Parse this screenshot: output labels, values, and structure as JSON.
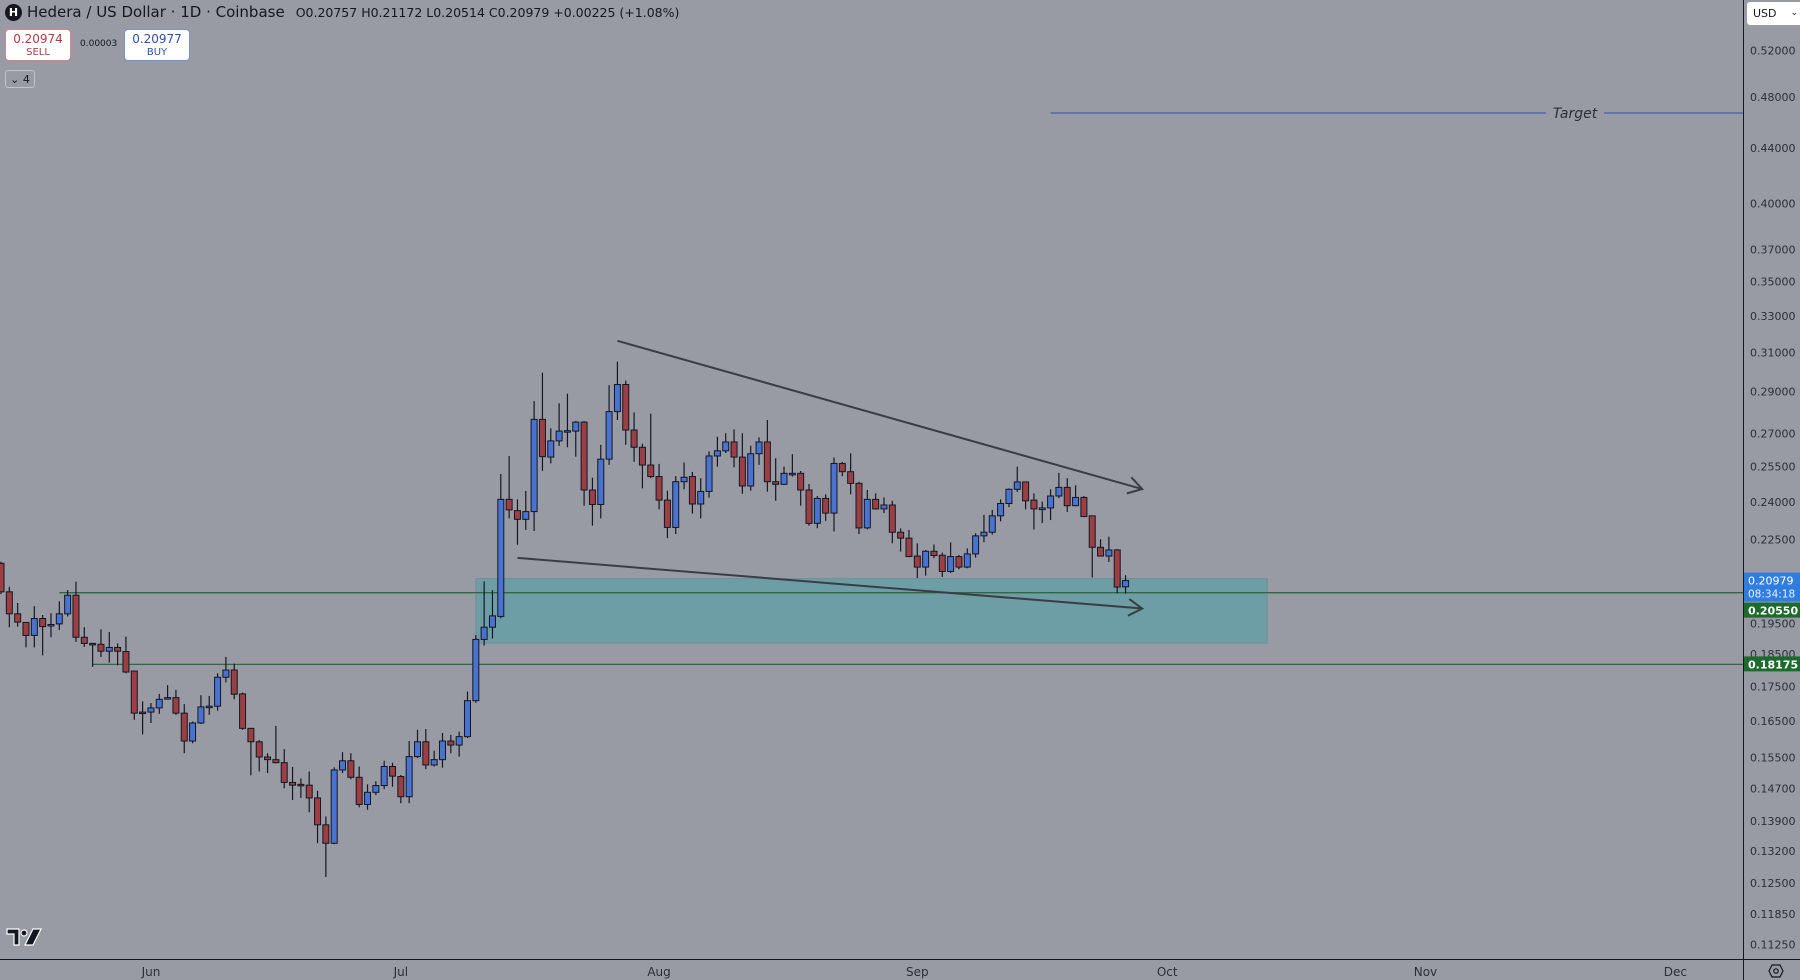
{
  "header": {
    "symbol_title": "Hedera / US Dollar · 1D · Coinbase",
    "symbol_logo_letter": "H",
    "ohlc": "O0.20757 H0.21172 L0.20514 C0.20979 +0.00225 (+1.08%)",
    "sell_price": "0.20974",
    "sell_label": "SELL",
    "spread": "0.00003",
    "buy_price": "0.20977",
    "buy_label": "BUY",
    "indicators_toggle": "4"
  },
  "currency_selector": "USD",
  "colors": {
    "background": "#999ba4",
    "up_candle": "#4a72d0",
    "down_candle": "#9c3f44",
    "wick": "#131722",
    "target_line": "#3f5fb8",
    "support_line": "#2e6a3a",
    "zone_fill": "#5f9ea6",
    "trend_line": "#3a3d46",
    "last_price_label": "#2f7de1",
    "support_label": "#1d6b2c"
  },
  "chart_data": {
    "type": "candlestick",
    "title": "Hedera / US Dollar · 1D · Coinbase",
    "y_scale": "log",
    "ylim": [
      0.1105,
      0.53
    ],
    "grid": false,
    "y_ticks": [
      "0.52000",
      "0.48000",
      "0.44000",
      "0.40000",
      "0.37000",
      "0.35000",
      "0.33000",
      "0.31000",
      "0.29000",
      "0.27000",
      "0.25500",
      "0.24000",
      "0.22500",
      "0.19500",
      "0.18500",
      "0.17500",
      "0.16500",
      "0.15500",
      "0.14700",
      "0.13900",
      "0.13200",
      "0.12500",
      "0.11850",
      "0.11250"
    ],
    "x_ticks": [
      {
        "label": "Jun",
        "date": "06-01"
      },
      {
        "label": "Jul",
        "date": "07-01"
      },
      {
        "label": "Aug",
        "date": "08-01"
      },
      {
        "label": "Sep",
        "date": "09-01"
      },
      {
        "label": "Oct",
        "date": "10-01"
      },
      {
        "label": "Nov",
        "date": "11-01"
      },
      {
        "label": "Dec",
        "date": "12-01"
      }
    ],
    "candle_fields": [
      "date",
      "open",
      "high",
      "low",
      "close"
    ],
    "candles": [
      [
        "05-14",
        0.2161,
        0.2167,
        0.205,
        0.2058
      ],
      [
        "05-15",
        0.2058,
        0.2076,
        0.1937,
        0.1982
      ],
      [
        "05-16",
        0.1982,
        0.2019,
        0.1939,
        0.1954
      ],
      [
        "05-17",
        0.1953,
        0.1953,
        0.1871,
        0.191
      ],
      [
        "05-18",
        0.191,
        0.2008,
        0.1871,
        0.1966
      ],
      [
        "05-19",
        0.1966,
        0.1978,
        0.1846,
        0.1939
      ],
      [
        "05-20",
        0.1942,
        0.1984,
        0.1904,
        0.1946
      ],
      [
        "05-21",
        0.1948,
        0.2025,
        0.1928,
        0.1982
      ],
      [
        "05-22",
        0.1982,
        0.2064,
        0.1973,
        0.2046
      ],
      [
        "05-23",
        0.2046,
        0.2094,
        0.1889,
        0.1904
      ],
      [
        "05-24",
        0.1904,
        0.1937,
        0.1873,
        0.1884
      ],
      [
        "05-25",
        0.1884,
        0.1886,
        0.181,
        0.1882
      ],
      [
        "05-26",
        0.1881,
        0.193,
        0.1841,
        0.1859
      ],
      [
        "05-27",
        0.1859,
        0.1921,
        0.1823,
        0.1871
      ],
      [
        "05-28",
        0.1871,
        0.1884,
        0.1815,
        0.1859
      ],
      [
        "05-29",
        0.1858,
        0.1906,
        0.179,
        0.1794
      ],
      [
        "05-30",
        0.1797,
        0.1797,
        0.1653,
        0.1672
      ],
      [
        "05-31",
        0.1675,
        0.1706,
        0.1612,
        0.1672
      ],
      [
        "06-01",
        0.1675,
        0.1701,
        0.1644,
        0.1687
      ],
      [
        "06-02",
        0.1687,
        0.1728,
        0.167,
        0.1712
      ],
      [
        "06-03",
        0.1716,
        0.1754,
        0.1713,
        0.1717
      ],
      [
        "06-04",
        0.1717,
        0.174,
        0.1667,
        0.1672
      ],
      [
        "06-05",
        0.1672,
        0.1698,
        0.1561,
        0.1594
      ],
      [
        "06-06",
        0.1594,
        0.1648,
        0.1588,
        0.1644
      ],
      [
        "06-07",
        0.1644,
        0.1724,
        0.1641,
        0.169
      ],
      [
        "06-08",
        0.1688,
        0.1722,
        0.1667,
        0.1692
      ],
      [
        "06-09",
        0.1692,
        0.179,
        0.1679,
        0.1778
      ],
      [
        "06-10",
        0.1778,
        0.1841,
        0.1762,
        0.18
      ],
      [
        "06-11",
        0.18,
        0.182,
        0.1712,
        0.1727
      ],
      [
        "06-12",
        0.1728,
        0.1732,
        0.1625,
        0.1629
      ],
      [
        "06-13",
        0.1629,
        0.1629,
        0.1503,
        0.1592
      ],
      [
        "06-14",
        0.1592,
        0.1597,
        0.1513,
        0.1551
      ],
      [
        "06-15",
        0.1551,
        0.1561,
        0.1509,
        0.1544
      ],
      [
        "06-16",
        0.1544,
        0.1636,
        0.1534,
        0.1536
      ],
      [
        "06-17",
        0.1536,
        0.1572,
        0.147,
        0.1485
      ],
      [
        "06-18",
        0.1485,
        0.1525,
        0.1441,
        0.1478
      ],
      [
        "06-19",
        0.148,
        0.1495,
        0.1446,
        0.1479
      ],
      [
        "06-20",
        0.1478,
        0.1513,
        0.1411,
        0.1446
      ],
      [
        "06-21",
        0.1446,
        0.1464,
        0.1338,
        0.1381
      ],
      [
        "06-22",
        0.1381,
        0.1401,
        0.1263,
        0.1338
      ],
      [
        "06-23",
        0.1338,
        0.1524,
        0.1336,
        0.1517
      ],
      [
        "06-24",
        0.1517,
        0.1564,
        0.1509,
        0.1541
      ],
      [
        "06-25",
        0.1541,
        0.1561,
        0.1493,
        0.1498
      ],
      [
        "06-26",
        0.1498,
        0.1526,
        0.1423,
        0.143
      ],
      [
        "06-27",
        0.143,
        0.148,
        0.1417,
        0.146
      ],
      [
        "06-28",
        0.146,
        0.1488,
        0.1453,
        0.1477
      ],
      [
        "06-29",
        0.1477,
        0.1541,
        0.1468,
        0.1526
      ],
      [
        "06-30",
        0.1526,
        0.1536,
        0.1474,
        0.1501
      ],
      [
        "07-01",
        0.15,
        0.1504,
        0.1433,
        0.1449
      ],
      [
        "07-02",
        0.1449,
        0.1594,
        0.1433,
        0.1552
      ],
      [
        "07-03",
        0.1552,
        0.1625,
        0.1548,
        0.1592
      ],
      [
        "07-04",
        0.1592,
        0.1627,
        0.1519,
        0.153
      ],
      [
        "07-05",
        0.153,
        0.1568,
        0.1526,
        0.1544
      ],
      [
        "07-06",
        0.1544,
        0.1616,
        0.1523,
        0.1594
      ],
      [
        "07-07",
        0.1594,
        0.1611,
        0.1561,
        0.1583
      ],
      [
        "07-08",
        0.1583,
        0.162,
        0.1552,
        0.1606
      ],
      [
        "07-09",
        0.1606,
        0.1735,
        0.1602,
        0.1708
      ],
      [
        "07-10",
        0.1708,
        0.1911,
        0.1702,
        0.1897
      ],
      [
        "07-11",
        0.1897,
        0.2095,
        0.1877,
        0.1937
      ],
      [
        "07-12",
        0.1937,
        0.2064,
        0.19,
        0.1975
      ],
      [
        "07-13",
        0.1973,
        0.2518,
        0.1967,
        0.2411
      ],
      [
        "07-14",
        0.2411,
        0.2597,
        0.2334,
        0.2368
      ],
      [
        "07-15",
        0.2365,
        0.2411,
        0.2231,
        0.233
      ],
      [
        "07-16",
        0.233,
        0.2446,
        0.2288,
        0.2361
      ],
      [
        "07-17",
        0.2361,
        0.2853,
        0.2284,
        0.2765
      ],
      [
        "07-18",
        0.2765,
        0.2995,
        0.2532,
        0.2594
      ],
      [
        "07-19",
        0.2592,
        0.2723,
        0.2564,
        0.2665
      ],
      [
        "07-20",
        0.2665,
        0.2842,
        0.2642,
        0.271
      ],
      [
        "07-21",
        0.271,
        0.2889,
        0.2636,
        0.2712
      ],
      [
        "07-22",
        0.271,
        0.2757,
        0.2594,
        0.2752
      ],
      [
        "07-23",
        0.2752,
        0.2757,
        0.2385,
        0.245
      ],
      [
        "07-24",
        0.245,
        0.2502,
        0.2305,
        0.239
      ],
      [
        "07-25",
        0.239,
        0.2647,
        0.2334,
        0.2583
      ],
      [
        "07-26",
        0.2583,
        0.2932,
        0.2558,
        0.2802
      ],
      [
        "07-27",
        0.2802,
        0.3052,
        0.2762,
        0.2935
      ],
      [
        "07-28",
        0.2935,
        0.2955,
        0.2647,
        0.2715
      ],
      [
        "07-29",
        0.2715,
        0.2798,
        0.2571,
        0.2636
      ],
      [
        "07-30",
        0.2636,
        0.2652,
        0.2457,
        0.2557
      ],
      [
        "07-31",
        0.2557,
        0.2792,
        0.25,
        0.2507
      ],
      [
        "08-01",
        0.2507,
        0.2562,
        0.237,
        0.2408
      ],
      [
        "08-02",
        0.2408,
        0.2447,
        0.2256,
        0.2298
      ],
      [
        "08-03",
        0.2298,
        0.2509,
        0.2272,
        0.2485
      ],
      [
        "08-04",
        0.2485,
        0.2568,
        0.2453,
        0.2504
      ],
      [
        "08-05",
        0.2507,
        0.2527,
        0.2353,
        0.2392
      ],
      [
        "08-06",
        0.2392,
        0.25,
        0.2334,
        0.2444
      ],
      [
        "08-07",
        0.2444,
        0.2617,
        0.2418,
        0.2597
      ],
      [
        "08-08",
        0.2597,
        0.2684,
        0.255,
        0.262
      ],
      [
        "08-09",
        0.262,
        0.27,
        0.261,
        0.266
      ],
      [
        "08-10",
        0.266,
        0.2718,
        0.2547,
        0.2592
      ],
      [
        "08-11",
        0.2592,
        0.27,
        0.2434,
        0.2467
      ],
      [
        "08-12",
        0.2467,
        0.2643,
        0.2447,
        0.2607
      ],
      [
        "08-13",
        0.2607,
        0.2681,
        0.2558,
        0.266
      ],
      [
        "08-14",
        0.266,
        0.2762,
        0.2443,
        0.2485
      ],
      [
        "08-15",
        0.2485,
        0.2587,
        0.2405,
        0.2474
      ],
      [
        "08-16",
        0.2474,
        0.255,
        0.2471,
        0.2521
      ],
      [
        "08-17",
        0.2519,
        0.2605,
        0.2507,
        0.2521
      ],
      [
        "08-18",
        0.2521,
        0.2531,
        0.2385,
        0.245
      ],
      [
        "08-19",
        0.245,
        0.2475,
        0.2305,
        0.2314
      ],
      [
        "08-20",
        0.2314,
        0.2425,
        0.2295,
        0.2415
      ],
      [
        "08-21",
        0.2415,
        0.2432,
        0.2324,
        0.2355
      ],
      [
        "08-22",
        0.2355,
        0.259,
        0.2282,
        0.2564
      ],
      [
        "08-23",
        0.2564,
        0.2571,
        0.2509,
        0.2528
      ],
      [
        "08-24",
        0.2528,
        0.2609,
        0.2432,
        0.2478
      ],
      [
        "08-25",
        0.2478,
        0.2485,
        0.2272,
        0.2296
      ],
      [
        "08-26",
        0.2296,
        0.245,
        0.229,
        0.2411
      ],
      [
        "08-27",
        0.2411,
        0.2436,
        0.2369,
        0.2372
      ],
      [
        "08-28",
        0.2372,
        0.2419,
        0.2355,
        0.2388
      ],
      [
        "08-29",
        0.2388,
        0.2405,
        0.2236,
        0.2279
      ],
      [
        "08-30",
        0.2279,
        0.2294,
        0.2205,
        0.2256
      ],
      [
        "08-31",
        0.2256,
        0.2288,
        0.2184,
        0.2186
      ],
      [
        "09-01",
        0.2188,
        0.2236,
        0.2107,
        0.2147
      ],
      [
        "09-02",
        0.2147,
        0.2211,
        0.2116,
        0.2206
      ],
      [
        "09-03",
        0.2206,
        0.2232,
        0.218,
        0.219
      ],
      [
        "09-04",
        0.2191,
        0.2201,
        0.2111,
        0.2131
      ],
      [
        "09-05",
        0.2131,
        0.224,
        0.2126,
        0.2186
      ],
      [
        "09-06",
        0.2186,
        0.2192,
        0.2139,
        0.2147
      ],
      [
        "09-07",
        0.2147,
        0.2217,
        0.2143,
        0.2196
      ],
      [
        "09-08",
        0.2196,
        0.2275,
        0.2182,
        0.2265
      ],
      [
        "09-09",
        0.2265,
        0.2348,
        0.224,
        0.2279
      ],
      [
        "09-10",
        0.2279,
        0.2368,
        0.227,
        0.2344
      ],
      [
        "09-11",
        0.2344,
        0.2411,
        0.2322,
        0.2394
      ],
      [
        "09-12",
        0.2394,
        0.2457,
        0.2379,
        0.2453
      ],
      [
        "09-13",
        0.2453,
        0.255,
        0.2442,
        0.2484
      ],
      [
        "09-14",
        0.2484,
        0.2486,
        0.237,
        0.2405
      ],
      [
        "09-15",
        0.2408,
        0.2436,
        0.229,
        0.2372
      ],
      [
        "09-16",
        0.2369,
        0.2402,
        0.2315,
        0.2376
      ],
      [
        "09-17",
        0.2376,
        0.2453,
        0.2327,
        0.2425
      ],
      [
        "09-18",
        0.2425,
        0.2523,
        0.2416,
        0.2461
      ],
      [
        "09-19",
        0.2461,
        0.25,
        0.236,
        0.2385
      ],
      [
        "09-20",
        0.2385,
        0.247,
        0.2383,
        0.2419
      ],
      [
        "09-21",
        0.2419,
        0.2425,
        0.2339,
        0.2341
      ],
      [
        "09-22",
        0.2344,
        0.2344,
        0.2109,
        0.2221
      ],
      [
        "09-23",
        0.2221,
        0.2252,
        0.2186,
        0.2188
      ],
      [
        "09-24",
        0.2188,
        0.2262,
        0.2166,
        0.2211
      ],
      [
        "09-25",
        0.2211,
        0.2214,
        0.2053,
        0.2075
      ],
      [
        "09-26",
        0.20757,
        0.21172,
        0.20514,
        0.20979
      ]
    ],
    "drawings": {
      "target_line": {
        "label": "Target",
        "price": 0.4672,
        "from_date": "09-17"
      },
      "support_lines": [
        {
          "price": 0.2055,
          "from_date": "05-21"
        },
        {
          "price": 0.18175,
          "from_date": "05-25"
        }
      ],
      "zone": {
        "from_date": "07-10",
        "to_date": "10-13",
        "top": 0.2105,
        "bottom": 0.1885
      },
      "trend_lines": [
        {
          "from": {
            "date": "07-27",
            "price": 0.3163
          },
          "to": {
            "date": "09-28",
            "price": 0.2454
          },
          "arrow": true
        },
        {
          "from": {
            "date": "07-15",
            "price": 0.2181
          },
          "to": {
            "date": "09-28",
            "price": 0.2
          },
          "arrow": true
        }
      ]
    },
    "price_labels": {
      "last_price": "0.20979",
      "countdown": "08:34:18",
      "support_1": "0.20550",
      "support_2": "0.18175"
    }
  }
}
